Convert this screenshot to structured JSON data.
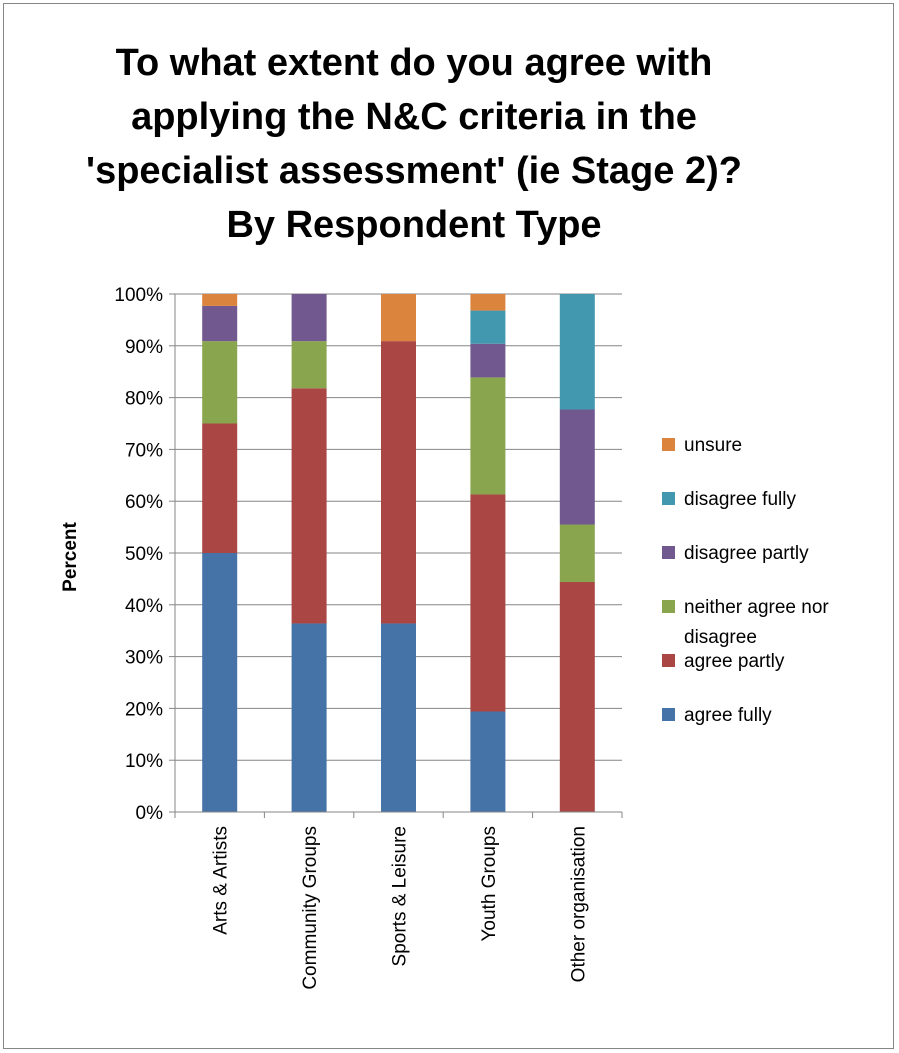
{
  "chart_data": {
    "type": "bar",
    "stacked": true,
    "percent_stacked": true,
    "title": "To what extent do you agree with applying the N&C criteria in the 'specialist assessment' (ie Stage 2)? By Respondent Type",
    "ylabel": "Percent",
    "xlabel": "",
    "ylim": [
      0,
      100
    ],
    "y_ticks": [
      "0%",
      "10%",
      "20%",
      "30%",
      "40%",
      "50%",
      "60%",
      "70%",
      "80%",
      "90%",
      "100%"
    ],
    "categories": [
      "Arts & Artists",
      "Community Groups",
      "Sports & Leisure",
      "Youth Groups",
      "Other organisation"
    ],
    "grid": "horizontal",
    "legend_position": "right",
    "series": [
      {
        "name": "agree fully",
        "color": "#4572A7",
        "values": [
          50.0,
          36.4,
          36.4,
          19.4,
          0.0
        ]
      },
      {
        "name": "agree partly",
        "color": "#AA4643",
        "values": [
          25.0,
          45.4,
          54.5,
          41.9,
          44.4
        ]
      },
      {
        "name": "neither agree nor disagree",
        "color": "#89A54E",
        "values": [
          15.9,
          9.1,
          0.0,
          22.6,
          11.1
        ]
      },
      {
        "name": "disagree partly",
        "color": "#71588F",
        "values": [
          6.8,
          9.1,
          0.0,
          6.5,
          22.2
        ]
      },
      {
        "name": "disagree fully",
        "color": "#4198AF",
        "values": [
          0.0,
          0.0,
          0.0,
          6.4,
          22.3
        ]
      },
      {
        "name": "unsure",
        "color": "#DB843D",
        "values": [
          2.3,
          0.0,
          9.1,
          3.2,
          0.0
        ]
      }
    ]
  }
}
